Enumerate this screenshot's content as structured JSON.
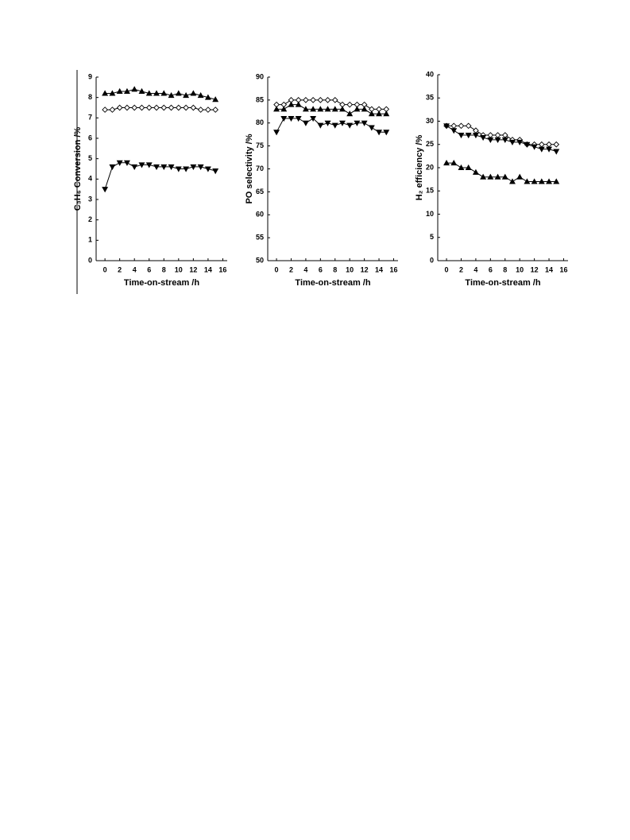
{
  "chart_data": [
    {
      "type": "line",
      "ylabel": "C₃H₆ Conversion /%",
      "xlabel": "Time-on-stream /h",
      "x": [
        0,
        1,
        2,
        3,
        4,
        5,
        6,
        7,
        8,
        9,
        10,
        11,
        12,
        13,
        14,
        15
      ],
      "xlim": [
        -1.2,
        16.6
      ],
      "xticks": [
        0,
        2,
        4,
        6,
        8,
        10,
        12,
        14,
        16
      ],
      "ylim": [
        0,
        9
      ],
      "yticks": [
        0,
        1,
        2,
        3,
        4,
        5,
        6,
        7,
        8,
        9
      ],
      "series": [
        {
          "color": "#000000",
          "marker": "triangle-up",
          "filled": true,
          "values": [
            8.2,
            8.2,
            8.3,
            8.3,
            8.4,
            8.3,
            8.2,
            8.2,
            8.2,
            8.1,
            8.2,
            8.1,
            8.2,
            8.1,
            8.0,
            7.9
          ]
        },
        {
          "color": "#000000",
          "marker": "diamond",
          "filled": false,
          "values": [
            7.4,
            7.4,
            7.5,
            7.5,
            7.5,
            7.5,
            7.5,
            7.5,
            7.5,
            7.5,
            7.5,
            7.5,
            7.5,
            7.4,
            7.4,
            7.4
          ]
        },
        {
          "color": "#000000",
          "marker": "triangle-down",
          "filled": true,
          "values": [
            3.5,
            4.6,
            4.8,
            4.8,
            4.6,
            4.7,
            4.7,
            4.6,
            4.6,
            4.6,
            4.5,
            4.5,
            4.6,
            4.6,
            4.5,
            4.4
          ]
        }
      ]
    },
    {
      "type": "line",
      "ylabel": "PO selectivity /%",
      "xlabel": "Time-on-stream /h",
      "x": [
        0,
        1,
        2,
        3,
        4,
        5,
        6,
        7,
        8,
        9,
        10,
        11,
        12,
        13,
        14,
        15
      ],
      "xlim": [
        -1.2,
        16.6
      ],
      "xticks": [
        0,
        2,
        4,
        6,
        8,
        10,
        12,
        14,
        16
      ],
      "ylim": [
        50,
        90
      ],
      "yticks": [
        50,
        55,
        60,
        65,
        70,
        75,
        80,
        85,
        90
      ],
      "series": [
        {
          "color": "#000000",
          "marker": "diamond",
          "filled": false,
          "values": [
            84,
            84,
            85,
            85,
            85,
            85,
            85,
            85,
            85,
            84,
            84,
            84,
            84,
            83,
            83,
            83
          ]
        },
        {
          "color": "#000000",
          "marker": "triangle-up",
          "filled": true,
          "values": [
            83,
            83,
            84,
            84,
            83,
            83,
            83,
            83,
            83,
            83,
            82,
            83,
            83,
            82,
            82,
            82
          ]
        },
        {
          "color": "#000000",
          "marker": "triangle-down",
          "filled": true,
          "values": [
            78,
            81,
            81,
            81,
            80,
            81,
            79.5,
            80,
            79.5,
            80,
            79.5,
            80,
            80,
            79,
            78,
            78
          ]
        }
      ]
    },
    {
      "type": "line",
      "ylabel": "H₂ efficiency /%",
      "xlabel": "Time-on-stream /h",
      "x": [
        0,
        1,
        2,
        3,
        4,
        5,
        6,
        7,
        8,
        9,
        10,
        11,
        12,
        13,
        14,
        15
      ],
      "xlim": [
        -1.2,
        16.6
      ],
      "xticks": [
        0,
        2,
        4,
        6,
        8,
        10,
        12,
        14,
        16
      ],
      "ylim": [
        0,
        40
      ],
      "yticks": [
        0,
        5,
        10,
        15,
        20,
        25,
        30,
        35,
        40
      ],
      "series": [
        {
          "color": "#000000",
          "marker": "diamond",
          "filled": false,
          "values": [
            29,
            29,
            29,
            29,
            28,
            27,
            27,
            27,
            27,
            26,
            26,
            25,
            25,
            25,
            25,
            25
          ]
        },
        {
          "color": "#000000",
          "marker": "triangle-down",
          "filled": true,
          "values": [
            29,
            28,
            27,
            27,
            27,
            26.5,
            26,
            26,
            26,
            25.5,
            25.5,
            25,
            24.5,
            24,
            24,
            23.5
          ]
        },
        {
          "color": "#000000",
          "marker": "triangle-up",
          "filled": true,
          "values": [
            21,
            21,
            20,
            20,
            19,
            18,
            18,
            18,
            18,
            17,
            18,
            17,
            17,
            17,
            17,
            17
          ]
        }
      ]
    }
  ]
}
